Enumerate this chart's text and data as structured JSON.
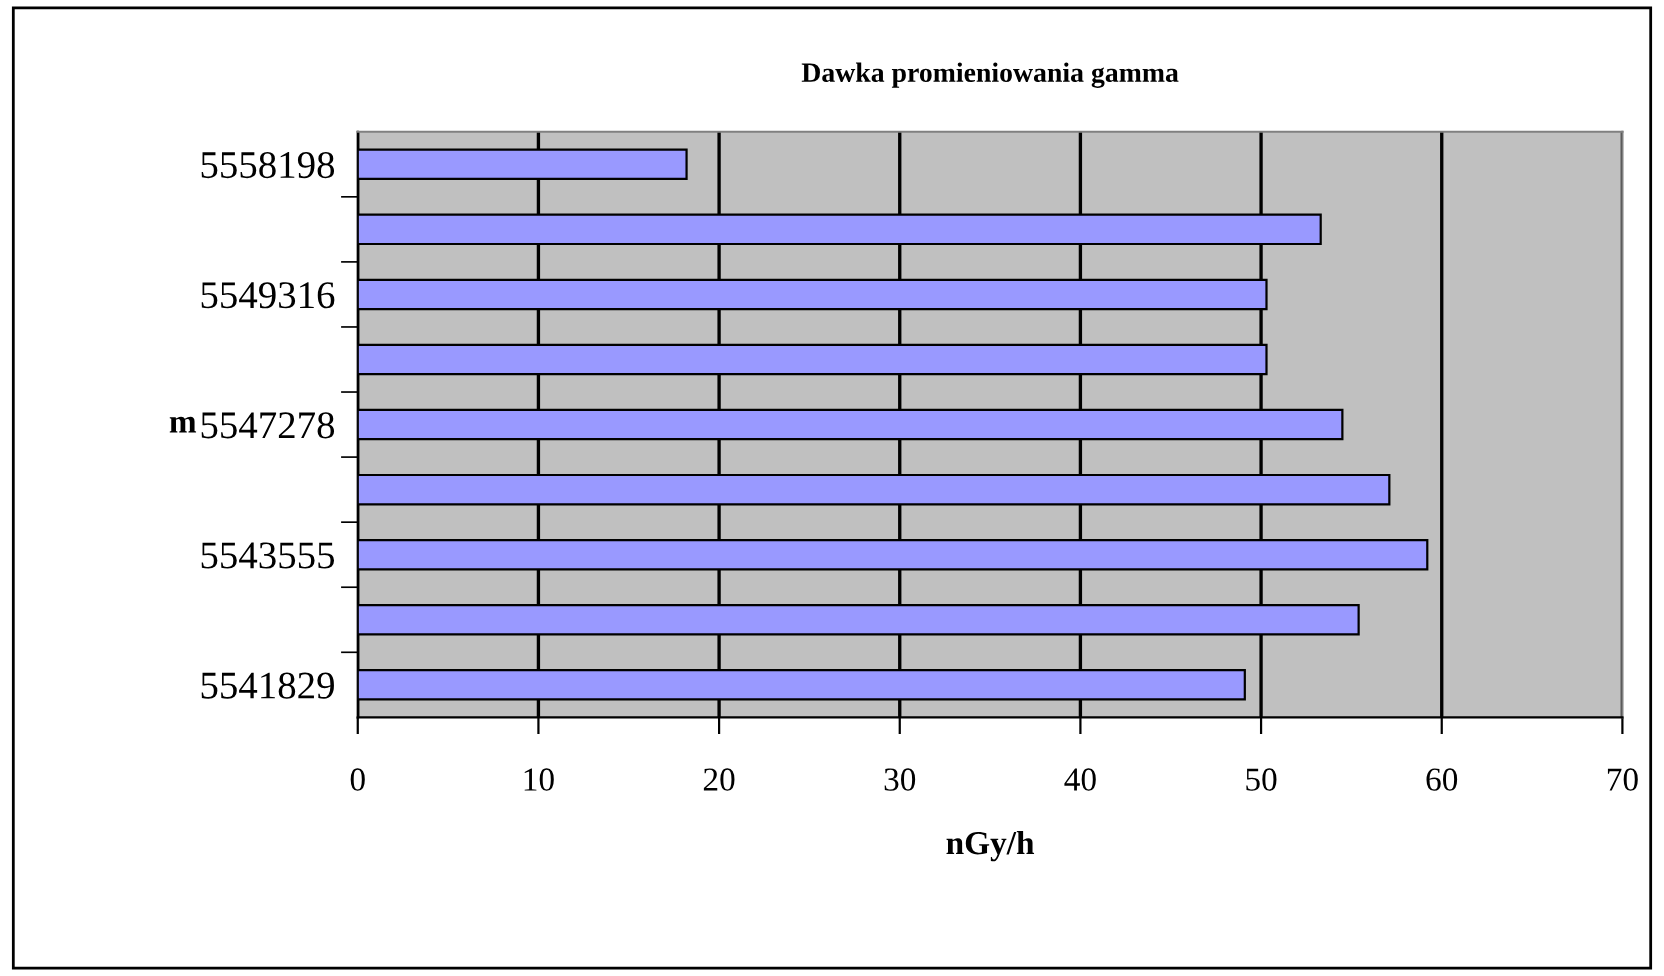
{
  "chart_data": {
    "type": "bar",
    "orientation": "horizontal",
    "title": "Dawka promieniowania gamma",
    "xlabel": "nGy/h",
    "ylabel": "m",
    "categories": [
      "5558198",
      null,
      "5549316",
      null,
      "5547278",
      null,
      "5543555",
      null,
      "5541829"
    ],
    "values": [
      18.2,
      53.3,
      50.3,
      50.3,
      54.5,
      57.1,
      59.2,
      55.4,
      49.1
    ],
    "color": "#9999ff",
    "xlim": [
      0,
      70
    ],
    "xticks": [
      0,
      10,
      20,
      30,
      40,
      50,
      60,
      70
    ],
    "grid": "x"
  }
}
